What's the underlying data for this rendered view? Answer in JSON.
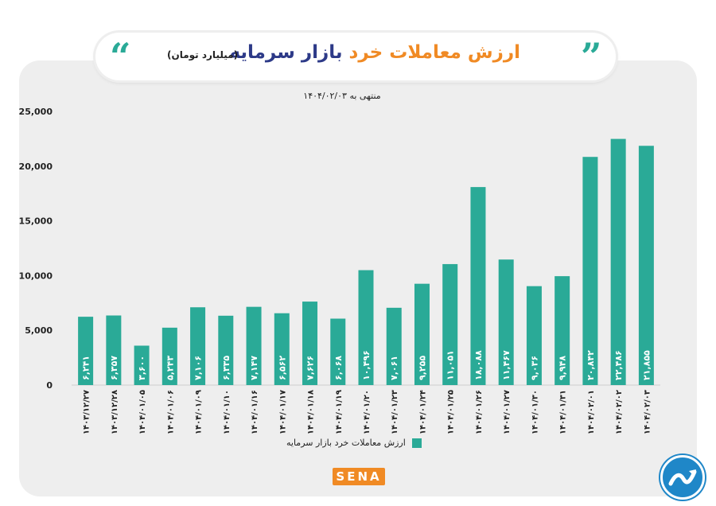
{
  "title": {
    "part1": "ارزش معاملات خرد",
    "part2": "بازار سرمایه",
    "unit": "(میلیارد تومان)",
    "quote_left": "“",
    "quote_right": "”"
  },
  "subtitle": "منتهی به ۱۴۰۴/۰۲/۰۳",
  "brand": {
    "logo_text": "SENA",
    "icon": "trend-arrow-icon"
  },
  "colors": {
    "bar": "#2aaa97",
    "accent": "#f08a24",
    "title_dark": "#2d3a88",
    "panel": "#eeeeee"
  },
  "chart_data": {
    "type": "bar",
    "title": "ارزش معاملات خرد بازار سرمایه",
    "ylim": [
      0,
      25000
    ],
    "yticks": [
      0,
      5000,
      10000,
      15000,
      20000,
      25000
    ],
    "ytick_labels": [
      "0",
      "5,000",
      "10,000",
      "15,000",
      "20,000",
      "25,000"
    ],
    "grid": false,
    "legend_position": "bottom",
    "categories": [
      "۱۴۰۳/۱۲/۲۷",
      "۱۴۰۳/۱۲/۲۸",
      "۱۴۰۴/۰۱/۰۵",
      "۱۴۰۴/۰۱/۰۶",
      "۱۴۰۴/۰۱/۰۹",
      "۱۴۰۴/۰۱/۱۰",
      "۱۴۰۴/۰۱/۱۶",
      "۱۴۰۴/۰۱/۱۷",
      "۱۴۰۴/۰۱/۱۸",
      "۱۴۰۴/۰۱/۱۹",
      "۱۴۰۴/۰۱/۲۰",
      "۱۴۰۴/۰۱/۲۳",
      "۱۴۰۴/۰۱/۲۴",
      "۱۴۰۴/۰۱/۲۵",
      "۱۴۰۴/۰۱/۲۶",
      "۱۴۰۴/۰۱/۲۷",
      "۱۴۰۴/۰۱/۳۰",
      "۱۴۰۴/۰۱/۳۱",
      "۱۴۰۴/۰۲/۰۱",
      "۱۴۰۴/۰۲/۰۲",
      "۱۴۰۴/۰۲/۰۳"
    ],
    "series": [
      {
        "name": "ارزش معاملات خرد بازار سرمایه",
        "values": [
          6241,
          6357,
          3600,
          5243,
          7106,
          6335,
          7147,
          6562,
          7626,
          6068,
          10496,
          7061,
          9255,
          11051,
          18088,
          11467,
          9036,
          9948,
          20842,
          22486,
          21855
        ],
        "labels": [
          "۶,۲۴۱",
          "۶,۳۵۷",
          "۳,۶۰۰",
          "۵,۲۴۳",
          "۷,۱۰۶",
          "۶,۳۳۵",
          "۷,۱۴۷",
          "۶,۵۶۲",
          "۷,۶۲۶",
          "۶,۰۶۸",
          "۱۰,۴۹۶",
          "۷,۰۶۱",
          "۹,۲۵۵",
          "۱۱,۰۵۱",
          "۱۸,۰۸۸",
          "۱۱,۴۶۷",
          "۹,۰۳۶",
          "۹,۹۴۸",
          "۲۰,۸۴۲",
          "۲۲,۴۸۶",
          "۲۱,۸۵۵"
        ]
      }
    ]
  }
}
